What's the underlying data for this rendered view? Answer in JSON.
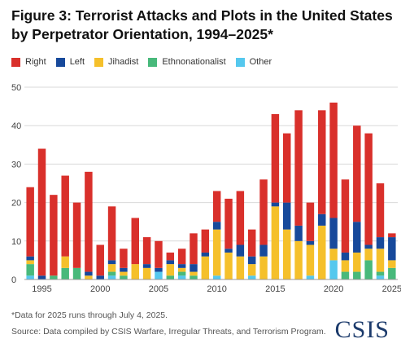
{
  "header": {
    "title_line1": "Figure 3: Terrorist Attacks and Plots in the United States",
    "title_line2": "by Perpetrator Orientation, 1994–2025*"
  },
  "legend": {
    "items": [
      {
        "label": "Right",
        "color": "#d9302b"
      },
      {
        "label": "Left",
        "color": "#17499b"
      },
      {
        "label": "Jihadist",
        "color": "#f5c02b"
      },
      {
        "label": "Ethnonationalist",
        "color": "#48b97b"
      },
      {
        "label": "Other",
        "color": "#55c8ee"
      }
    ]
  },
  "footer": {
    "note": "*Data for 2025 runs through July 4, 2025.",
    "source": "Source: Data compiled by CSIS Warfare, Irregular Threats, and Terrorism Program.",
    "logo": "CSIS"
  },
  "chart_data": {
    "type": "bar",
    "stacked": true,
    "categories": [
      "1994",
      "1995",
      "1996",
      "1997",
      "1998",
      "1999",
      "2000",
      "2001",
      "2002",
      "2003",
      "2004",
      "2005",
      "2006",
      "2007",
      "2008",
      "2009",
      "2010",
      "2011",
      "2012",
      "2013",
      "2014",
      "2015",
      "2016",
      "2017",
      "2018",
      "2019",
      "2020",
      "2021",
      "2022",
      "2023",
      "2024",
      "2025"
    ],
    "x_tick_labels": [
      "1995",
      "2000",
      "2005",
      "2010",
      "2015",
      "2020",
      "2025"
    ],
    "ylim": [
      0,
      50
    ],
    "y_ticks": [
      0,
      10,
      20,
      30,
      40,
      50
    ],
    "grid": true,
    "legend_position": "top-left",
    "title": "Figure 3: Terrorist Attacks and Plots in the United States by Perpetrator Orientation, 1994–2025*",
    "xlabel": "",
    "ylabel": "",
    "series": [
      {
        "name": "Other",
        "color": "#55c8ee",
        "values": [
          1,
          0,
          0,
          0,
          0,
          0,
          0,
          1,
          0,
          0,
          0,
          2,
          0,
          1,
          0,
          0,
          1,
          0,
          0,
          1,
          0,
          0,
          0,
          0,
          1,
          0,
          5,
          0,
          0,
          0,
          1,
          0
        ]
      },
      {
        "name": "Ethnonationalist",
        "color": "#48b97b",
        "values": [
          3,
          0,
          1,
          3,
          3,
          0,
          0,
          1,
          1,
          0,
          0,
          0,
          1,
          1,
          1,
          0,
          0,
          0,
          0,
          0,
          0,
          0,
          0,
          0,
          0,
          0,
          0,
          2,
          2,
          5,
          1,
          3
        ]
      },
      {
        "name": "Jihadist",
        "color": "#f5c02b",
        "values": [
          1,
          0,
          0,
          3,
          0,
          1,
          0,
          2,
          1,
          4,
          3,
          0,
          3,
          1,
          1,
          6,
          12,
          7,
          6,
          3,
          6,
          19,
          13,
          10,
          8,
          14,
          3,
          3,
          5,
          3,
          6,
          2
        ]
      },
      {
        "name": "Left",
        "color": "#17499b",
        "values": [
          1,
          1,
          0,
          0,
          0,
          1,
          1,
          1,
          1,
          0,
          1,
          1,
          1,
          1,
          2,
          1,
          2,
          1,
          3,
          2,
          3,
          1,
          7,
          4,
          1,
          3,
          8,
          2,
          8,
          1,
          3,
          6
        ]
      },
      {
        "name": "Right",
        "color": "#d9302b",
        "values": [
          18,
          33,
          21,
          21,
          17,
          26,
          8,
          14,
          5,
          12,
          7,
          7,
          2,
          4,
          8,
          6,
          8,
          13,
          14,
          7,
          17,
          23,
          18,
          30,
          10,
          27,
          30,
          19,
          25,
          29,
          14,
          1
        ]
      }
    ]
  }
}
